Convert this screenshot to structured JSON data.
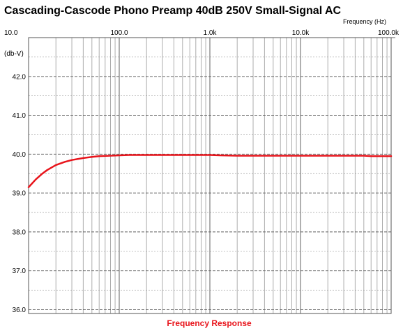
{
  "chart_data": {
    "type": "line",
    "title": "Cascading-Cascode Phono Preamp 40dB 250V Small-Signal AC",
    "xlabel": "Frequency Response",
    "xunit": "Frequency   (Hz)",
    "ylabel": "(db-V)",
    "xscale": "log",
    "xlim": [
      10,
      100000
    ],
    "ylim": [
      35.9,
      43.0
    ],
    "grid": true,
    "x_ticks": [
      {
        "value": 10,
        "label": "10.0"
      },
      {
        "value": 100,
        "label": "100.0"
      },
      {
        "value": 1000,
        "label": "1.0k"
      },
      {
        "value": 10000,
        "label": "10.0k"
      },
      {
        "value": 100000,
        "label": "100.0k"
      }
    ],
    "y_ticks": [
      {
        "value": 42.0,
        "label": "42.0"
      },
      {
        "value": 41.0,
        "label": "41.0"
      },
      {
        "value": 40.0,
        "label": "40.0"
      },
      {
        "value": 39.0,
        "label": "39.0"
      },
      {
        "value": 38.0,
        "label": "38.0"
      },
      {
        "value": 37.0,
        "label": "37.0"
      },
      {
        "value": 36.0,
        "label": "36.0"
      }
    ],
    "series": [
      {
        "color": "#e8141b",
        "x": [
          10,
          12,
          14,
          16,
          18,
          20,
          25,
          30,
          40,
          50,
          60,
          80,
          100,
          130,
          200,
          500,
          1000,
          1300,
          2000,
          5000,
          10000,
          20000,
          50000,
          60000,
          100000
        ],
        "y": [
          39.15,
          39.35,
          39.49,
          39.59,
          39.66,
          39.72,
          39.8,
          39.85,
          39.9,
          39.93,
          39.95,
          39.96,
          39.97,
          39.98,
          39.98,
          39.98,
          39.98,
          39.97,
          39.96,
          39.96,
          39.96,
          39.96,
          39.96,
          39.95,
          39.95
        ]
      }
    ]
  },
  "colors": {
    "grid_major": "#606060",
    "grid_minor": "#8a8a8a",
    "curve": "#e8141b",
    "xlabel": "#e8141b"
  }
}
